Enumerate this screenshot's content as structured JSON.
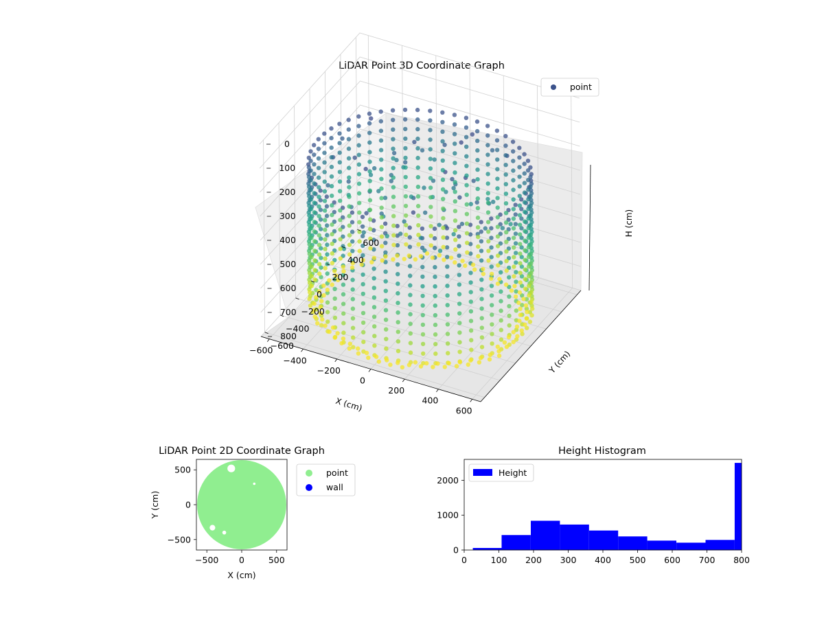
{
  "chart_data": [
    {
      "type": "scatter",
      "projection": "3d",
      "title": "LiDAR Point 3D Coordinate Graph",
      "xlabel": "X (cm)",
      "ylabel": "Y (cm)",
      "zlabel": "H (cm)",
      "xlim": [
        -650,
        650
      ],
      "ylim": [
        -650,
        650
      ],
      "zlim": [
        800,
        0
      ],
      "z_inverted": true,
      "xticks": [
        -600,
        -400,
        -200,
        0,
        200,
        400,
        600
      ],
      "yticks": [
        -600,
        -400,
        -200,
        0,
        200,
        400,
        600
      ],
      "zticks": [
        0,
        100,
        200,
        300,
        400,
        500,
        600,
        700,
        800
      ],
      "colormap": "viridis",
      "legend": {
        "position": "top-right",
        "entries": [
          {
            "label": "point",
            "color": "#3b528b"
          }
        ]
      },
      "series": [
        {
          "name": "point",
          "description_of_shape": "cylindrical wall of points, radius ~600 cm, heights 0-800 cm, floor ring near H=800",
          "wall_radius": 600,
          "height_range": [
            0,
            800
          ]
        }
      ],
      "grid": true
    },
    {
      "type": "scatter",
      "title": "LiDAR Point 2D Coordinate Graph",
      "xlabel": "X (cm)",
      "ylabel": "Y (cm)",
      "xlim": [
        -650,
        650
      ],
      "ylim": [
        -650,
        650
      ],
      "xticks": [
        -500,
        0,
        500
      ],
      "yticks": [
        -500,
        0,
        500
      ],
      "legend": {
        "position": "outside-right",
        "entries": [
          {
            "label": "point",
            "color": "#90ee90"
          },
          {
            "label": "wall",
            "color": "#0000ff"
          }
        ]
      },
      "series": [
        {
          "name": "point",
          "color": "#90ee90",
          "radius": 640
        },
        {
          "name": "wall",
          "color": "#0000ff"
        }
      ],
      "grid": false
    },
    {
      "type": "bar",
      "subtype": "histogram",
      "title": "Height Histogram",
      "xlim": [
        0,
        800
      ],
      "ylim": [
        0,
        2600
      ],
      "xticks": [
        0,
        100,
        200,
        300,
        400,
        500,
        600,
        700,
        800
      ],
      "yticks": [
        0,
        1000,
        2000
      ],
      "legend": {
        "position": "top-left",
        "entries": [
          {
            "label": "Height",
            "color": "#0000ff"
          }
        ]
      },
      "bins": [
        {
          "start": 25,
          "end": 108,
          "count": 60
        },
        {
          "start": 108,
          "end": 192,
          "count": 430
        },
        {
          "start": 192,
          "end": 276,
          "count": 840
        },
        {
          "start": 276,
          "end": 360,
          "count": 730
        },
        {
          "start": 360,
          "end": 444,
          "count": 560
        },
        {
          "start": 444,
          "end": 528,
          "count": 390
        },
        {
          "start": 528,
          "end": 612,
          "count": 270
        },
        {
          "start": 612,
          "end": 696,
          "count": 210
        },
        {
          "start": 696,
          "end": 780,
          "count": 290
        },
        {
          "start": 780,
          "end": 800,
          "count": 2500
        }
      ],
      "bar_color": "#0000ff",
      "grid": false
    }
  ]
}
